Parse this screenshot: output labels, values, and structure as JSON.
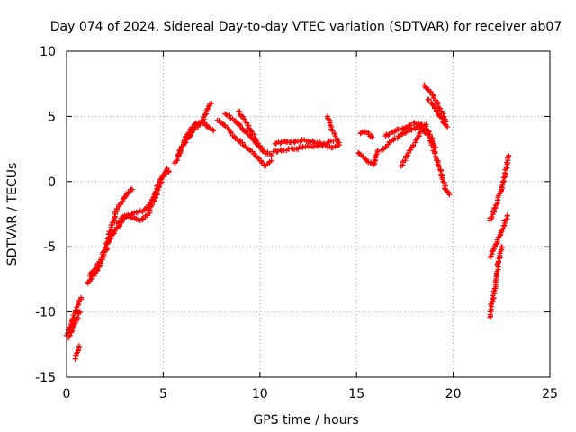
{
  "chart_data": {
    "type": "scatter",
    "title": "Day 074 of 2024, Sidereal Day-to-day VTEC variation (SDTVAR) for receiver ab07",
    "xlabel": "GPS time / hours",
    "ylabel": "SDTVAR / TECUs",
    "xlim": [
      0,
      25
    ],
    "ylim": [
      -15,
      10
    ],
    "xticks": [
      0,
      5,
      10,
      15,
      20,
      25
    ],
    "yticks": [
      -15,
      -10,
      -5,
      0,
      5,
      10
    ],
    "grid": true,
    "marker": "+",
    "color": "#ff0000",
    "series": [
      {
        "name": "seg1",
        "points": [
          [
            0.0,
            -11.8
          ],
          [
            0.15,
            -11.2
          ],
          [
            0.3,
            -10.6
          ],
          [
            0.45,
            -10.0
          ],
          [
            0.6,
            -9.4
          ],
          [
            0.75,
            -8.9
          ]
        ]
      },
      {
        "name": "seg2",
        "points": [
          [
            0.1,
            -12.0
          ],
          [
            0.25,
            -11.5
          ],
          [
            0.4,
            -11.0
          ],
          [
            0.55,
            -10.5
          ],
          [
            0.7,
            -10.0
          ]
        ]
      },
      {
        "name": "seg3",
        "points": [
          [
            0.45,
            -13.6
          ],
          [
            0.55,
            -13.1
          ],
          [
            0.65,
            -12.6
          ]
        ]
      },
      {
        "name": "seg4",
        "points": [
          [
            1.1,
            -7.8
          ],
          [
            1.5,
            -7.0
          ],
          [
            1.9,
            -5.8
          ],
          [
            2.2,
            -4.5
          ],
          [
            2.6,
            -3.6
          ],
          [
            3.0,
            -2.8
          ],
          [
            3.5,
            -2.4
          ],
          [
            4.0,
            -2.2
          ],
          [
            4.4,
            -1.6
          ],
          [
            4.8,
            0.0
          ],
          [
            5.2,
            1.0
          ]
        ]
      },
      {
        "name": "seg5",
        "points": [
          [
            1.2,
            -7.2
          ],
          [
            1.6,
            -6.4
          ],
          [
            2.0,
            -5.2
          ],
          [
            2.3,
            -3.5
          ],
          [
            2.7,
            -1.8
          ],
          [
            3.1,
            -1.0
          ],
          [
            3.4,
            -0.6
          ]
        ]
      },
      {
        "name": "seg6",
        "points": [
          [
            2.6,
            -3.2
          ],
          [
            3.0,
            -2.6
          ],
          [
            3.4,
            -2.8
          ],
          [
            3.8,
            -3.0
          ],
          [
            4.2,
            -2.6
          ],
          [
            4.6,
            -1.2
          ],
          [
            5.0,
            0.5
          ],
          [
            5.3,
            0.8
          ]
        ]
      },
      {
        "name": "seg7",
        "points": [
          [
            5.6,
            1.4
          ],
          [
            5.9,
            2.4
          ],
          [
            6.2,
            3.2
          ],
          [
            6.5,
            3.8
          ],
          [
            6.8,
            4.3
          ],
          [
            7.1,
            4.8
          ],
          [
            7.3,
            5.6
          ],
          [
            7.5,
            6.0
          ]
        ]
      },
      {
        "name": "seg8",
        "points": [
          [
            5.8,
            2.0
          ],
          [
            6.1,
            3.2
          ],
          [
            6.4,
            4.0
          ],
          [
            6.7,
            4.5
          ],
          [
            7.0,
            4.6
          ],
          [
            7.3,
            4.2
          ],
          [
            7.6,
            3.9
          ]
        ]
      },
      {
        "name": "seg9",
        "points": [
          [
            7.8,
            4.7
          ],
          [
            8.1,
            4.4
          ],
          [
            8.4,
            4.0
          ],
          [
            8.7,
            3.4
          ],
          [
            9.0,
            3.0
          ],
          [
            9.3,
            2.6
          ],
          [
            9.6,
            2.3
          ],
          [
            9.9,
            1.8
          ],
          [
            10.3,
            1.2
          ],
          [
            10.6,
            1.6
          ]
        ]
      },
      {
        "name": "seg10",
        "points": [
          [
            8.2,
            5.2
          ],
          [
            8.6,
            4.8
          ],
          [
            9.0,
            4.2
          ],
          [
            9.4,
            3.6
          ],
          [
            9.8,
            2.9
          ],
          [
            10.2,
            2.3
          ],
          [
            10.6,
            2.0
          ]
        ]
      },
      {
        "name": "seg11",
        "points": [
          [
            8.9,
            5.4
          ],
          [
            9.2,
            4.8
          ],
          [
            9.5,
            4.0
          ],
          [
            9.8,
            3.2
          ],
          [
            10.1,
            2.6
          ]
        ]
      },
      {
        "name": "seg12",
        "points": [
          [
            10.7,
            2.3
          ],
          [
            11.2,
            2.4
          ],
          [
            11.7,
            2.5
          ],
          [
            12.2,
            2.6
          ],
          [
            12.7,
            2.7
          ],
          [
            13.2,
            2.8
          ],
          [
            13.7,
            2.6
          ],
          [
            14.1,
            2.8
          ]
        ]
      },
      {
        "name": "seg13",
        "points": [
          [
            10.8,
            2.9
          ],
          [
            11.3,
            3.1
          ],
          [
            11.8,
            3.0
          ],
          [
            12.3,
            3.2
          ],
          [
            12.8,
            3.0
          ],
          [
            13.3,
            2.9
          ],
          [
            13.8,
            3.1
          ]
        ]
      },
      {
        "name": "seg14",
        "points": [
          [
            13.5,
            5.0
          ],
          [
            13.7,
            4.2
          ],
          [
            13.9,
            3.5
          ],
          [
            14.1,
            2.8
          ]
        ]
      },
      {
        "name": "seg15",
        "points": [
          [
            15.2,
            3.7
          ],
          [
            15.5,
            3.8
          ],
          [
            15.8,
            3.4
          ]
        ]
      },
      {
        "name": "seg16",
        "points": [
          [
            15.1,
            2.2
          ],
          [
            15.5,
            1.7
          ],
          [
            15.9,
            1.3
          ],
          [
            16.1,
            2.4
          ]
        ]
      },
      {
        "name": "seg17",
        "points": [
          [
            16.3,
            2.4
          ],
          [
            16.8,
            3.1
          ],
          [
            17.3,
            3.6
          ],
          [
            17.8,
            4.0
          ],
          [
            18.3,
            4.2
          ],
          [
            18.8,
            3.3
          ],
          [
            19.2,
            1.6
          ],
          [
            19.6,
            -0.6
          ],
          [
            19.8,
            -1.0
          ]
        ]
      },
      {
        "name": "seg18",
        "points": [
          [
            16.5,
            3.5
          ],
          [
            17.0,
            3.9
          ],
          [
            17.5,
            4.1
          ],
          [
            18.0,
            4.5
          ],
          [
            18.5,
            4.3
          ],
          [
            18.8,
            3.6
          ],
          [
            19.1,
            2.6
          ]
        ]
      },
      {
        "name": "seg19",
        "points": [
          [
            17.3,
            1.2
          ],
          [
            17.7,
            2.2
          ],
          [
            18.1,
            3.2
          ],
          [
            18.3,
            3.8
          ],
          [
            18.6,
            4.4
          ]
        ]
      },
      {
        "name": "seg20",
        "points": [
          [
            18.5,
            7.4
          ],
          [
            18.8,
            6.9
          ],
          [
            19.1,
            6.2
          ],
          [
            19.4,
            5.4
          ],
          [
            19.7,
            4.2
          ]
        ]
      },
      {
        "name": "seg21",
        "points": [
          [
            18.7,
            6.3
          ],
          [
            19.0,
            5.8
          ],
          [
            19.3,
            5.0
          ],
          [
            19.6,
            4.4
          ]
        ]
      },
      {
        "name": "seg22",
        "points": [
          [
            21.9,
            -3.0
          ],
          [
            22.2,
            -1.8
          ],
          [
            22.5,
            -0.6
          ],
          [
            22.7,
            0.6
          ],
          [
            22.85,
            2.0
          ]
        ]
      },
      {
        "name": "seg23",
        "points": [
          [
            21.9,
            -5.8
          ],
          [
            22.2,
            -4.8
          ],
          [
            22.5,
            -3.8
          ],
          [
            22.8,
            -2.6
          ]
        ]
      },
      {
        "name": "seg24",
        "points": [
          [
            21.9,
            -10.4
          ],
          [
            22.05,
            -9.0
          ],
          [
            22.2,
            -7.6
          ],
          [
            22.35,
            -6.2
          ],
          [
            22.5,
            -5.0
          ]
        ]
      }
    ]
  }
}
